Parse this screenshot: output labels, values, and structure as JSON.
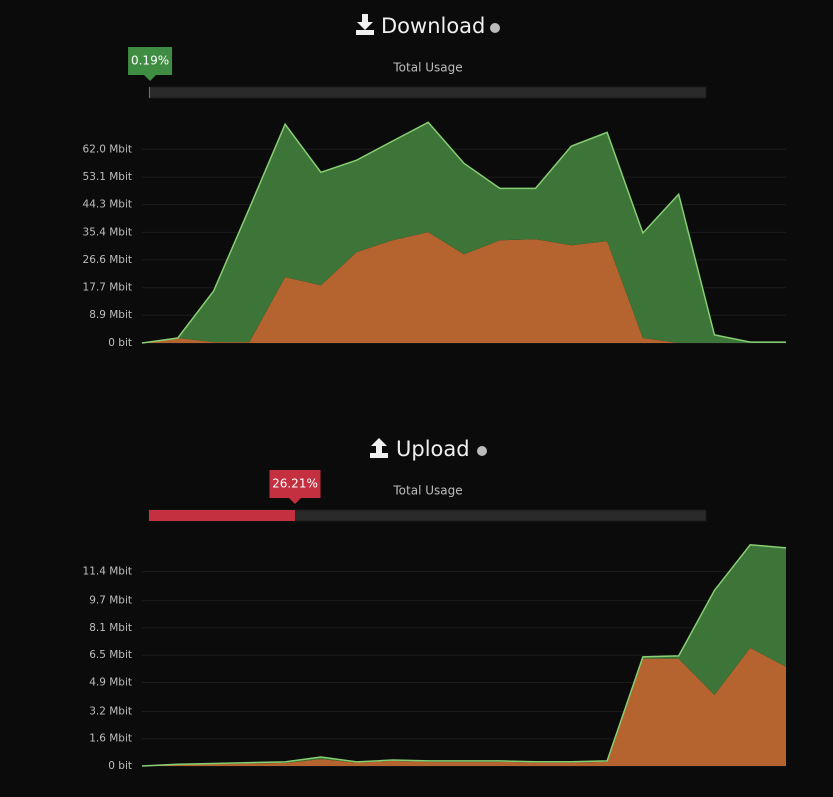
{
  "chart_data": [
    {
      "type": "area",
      "title": "Download",
      "usage_caption": "Total Usage",
      "usage_value": 0.19,
      "usage_label": "0.19%",
      "usage_color": "#3f8d42",
      "ylim": [
        0,
        72
      ],
      "yticks": [
        {
          "value": 0,
          "label": "0 bit"
        },
        {
          "value": 8.9,
          "label": "8.9 Mbit"
        },
        {
          "value": 17.7,
          "label": "17.7 Mbit"
        },
        {
          "value": 26.6,
          "label": "26.6 Mbit"
        },
        {
          "value": 35.4,
          "label": "35.4 Mbit"
        },
        {
          "value": 44.3,
          "label": "44.3 Mbit"
        },
        {
          "value": 53.1,
          "label": "53.1 Mbit"
        },
        {
          "value": 62.0,
          "label": "62.0 Mbit"
        }
      ],
      "grid": true,
      "series": [
        {
          "color": "#b5632f",
          "values": [
            0,
            1.6,
            0.3,
            0.3,
            21.1,
            18.5,
            29.1,
            32.9,
            35.5,
            28.4,
            32.9,
            33.2,
            31.3,
            32.6,
            1.6,
            0,
            0,
            0,
            0
          ]
        },
        {
          "color": "#3d7437",
          "values": [
            0,
            0,
            16.3,
            42.8,
            48.9,
            36.1,
            29.4,
            31.7,
            35.1,
            29.1,
            16.6,
            16.3,
            31.7,
            34.8,
            33.6,
            47.6,
            2.6,
            0.3,
            0.3
          ]
        }
      ]
    },
    {
      "type": "area",
      "title": "Upload",
      "usage_caption": "Total Usage",
      "usage_value": 26.21,
      "usage_label": "26.21%",
      "usage_color": "#c4303f",
      "ylim": [
        0,
        13.2
      ],
      "yticks": [
        {
          "value": 0,
          "label": "0 bit"
        },
        {
          "value": 1.6,
          "label": "1.6 Mbit"
        },
        {
          "value": 3.2,
          "label": "3.2 Mbit"
        },
        {
          "value": 4.9,
          "label": "4.9 Mbit"
        },
        {
          "value": 6.5,
          "label": "6.5 Mbit"
        },
        {
          "value": 8.1,
          "label": "8.1 Mbit"
        },
        {
          "value": 9.7,
          "label": "9.7 Mbit"
        },
        {
          "value": 11.4,
          "label": "11.4 Mbit"
        }
      ],
      "grid": true,
      "series": [
        {
          "color": "#b5632f",
          "values": [
            0,
            0.1,
            0.12,
            0.15,
            0.18,
            0.4,
            0.2,
            0.3,
            0.25,
            0.25,
            0.25,
            0.2,
            0.2,
            0.25,
            6.3,
            6.3,
            4.17,
            6.93,
            5.82
          ]
        },
        {
          "color": "#3d7437",
          "values": [
            0,
            0,
            0.03,
            0.05,
            0.06,
            0.13,
            0.04,
            0.05,
            0.05,
            0.05,
            0.05,
            0.05,
            0.05,
            0.05,
            0.1,
            0.16,
            6.13,
            6.05,
            6.98
          ]
        }
      ]
    }
  ]
}
